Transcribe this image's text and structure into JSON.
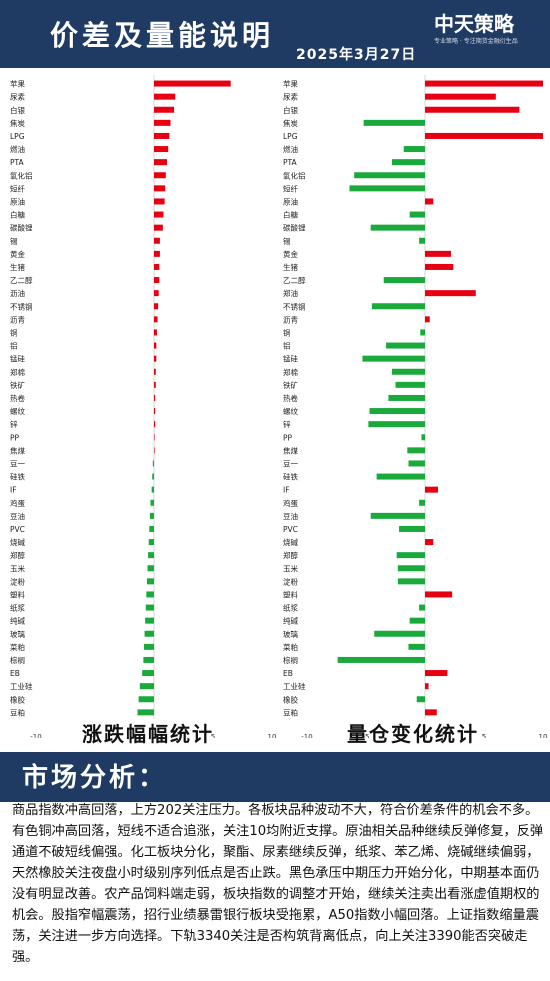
{
  "header": {
    "title": "价差及量能说明",
    "date": "2025年3月27日",
    "logo": "中天策略",
    "logo_sub": "专业策略 · 专注期货金融衍生品"
  },
  "captions": {
    "left": "涨跌幅幅统计",
    "right": "量仓变化统计"
  },
  "section": {
    "title": "市场分析："
  },
  "analysis": "商品指数冲高回落，上方202关注压力。各板块品种波动不大，符合价差条件的机会不多。有色铜冲高回落，短线不适合追涨，关注10均附近支撑。原油相关品种继续反弹修复，反弹通道不破短线偏强。化工板块分化，聚酯、尿素继续反弹，纸浆、苯乙烯、烧碱继续偏弱，天然橡胶关注夜盘小时级别序列低点是否止跌。黑色承压中期压力开始分化，中期基本面仍没有明显改善。农产品饲料端走弱，板块指数的调整才开始，继续关注卖出看涨虚值期权的机会。股指窄幅震荡，招行业绩暴雷银行板块受拖累，A50指数小幅回落。上证指数缩量震荡，关注进一步方向选择。下轨3340关注是否构筑背离低点，向上关注3390能否突破走强。",
  "colors": {
    "up": "#e60012",
    "down": "#1aaa3c",
    "header": "#1f3a63"
  },
  "chart_data": [
    {
      "type": "bar",
      "orientation": "horizontal",
      "title": "涨跌幅幅统计",
      "xlim": [
        -10,
        10
      ],
      "xticks": [
        "-10",
        "-5",
        "0",
        "5",
        "10"
      ],
      "categories": [
        "苹果",
        "尿素",
        "白银",
        "焦炭",
        "LPG",
        "燃油",
        "PTA",
        "氧化铝",
        "短纤",
        "原油",
        "白糖",
        "碳酸锂",
        "锡",
        "黄金",
        "生猪",
        "乙二醇",
        "沥油",
        "不锈钢",
        "沥青",
        "铜",
        "铝",
        "锰硅",
        "郑棉",
        "铁矿",
        "热卷",
        "螺纹",
        "锌",
        "PP",
        "焦煤",
        "豆一",
        "硅铁",
        "IF",
        "鸡蛋",
        "豆油",
        "PVC",
        "烧碱",
        "郑醇",
        "玉米",
        "淀粉",
        "塑料",
        "纸浆",
        "纯碱",
        "玻璃",
        "菜粕",
        "棕榈",
        "EB",
        "工业硅",
        "橡胶",
        "豆粕"
      ],
      "values": [
        6.5,
        1.8,
        1.7,
        1.4,
        1.3,
        1.2,
        1.1,
        1.0,
        0.95,
        0.9,
        0.8,
        0.75,
        0.5,
        0.5,
        0.45,
        0.45,
        0.4,
        0.35,
        0.3,
        0.25,
        0.2,
        0.2,
        0.15,
        0.15,
        0.1,
        0.1,
        0.1,
        0.05,
        0.05,
        -0.1,
        -0.15,
        -0.2,
        -0.3,
        -0.35,
        -0.4,
        -0.45,
        -0.5,
        -0.55,
        -0.6,
        -0.65,
        -0.7,
        -0.75,
        -0.8,
        -0.85,
        -0.9,
        -1.0,
        -1.2,
        -1.3,
        -1.4
      ]
    },
    {
      "type": "bar",
      "orientation": "horizontal",
      "title": "量仓变化统计",
      "xlim": [
        -10,
        10
      ],
      "xticks": [
        "-10",
        "-5",
        "0",
        "5",
        "10"
      ],
      "categories": [
        "苹果",
        "尿素",
        "白银",
        "焦炭",
        "LPG",
        "燃油",
        "PTA",
        "氧化铝",
        "短纤",
        "原油",
        "白糖",
        "碳酸锂",
        "锡",
        "黄金",
        "生猪",
        "乙二醇",
        "郑油",
        "不锈钢",
        "沥青",
        "铜",
        "铝",
        "锰硅",
        "郑棉",
        "铁矿",
        "热卷",
        "螺纹",
        "锌",
        "PP",
        "焦煤",
        "豆一",
        "硅铁",
        "IF",
        "鸡蛋",
        "豆油",
        "PVC",
        "烧碱",
        "郑醇",
        "玉米",
        "淀粉",
        "塑料",
        "纸浆",
        "纯碱",
        "玻璃",
        "菜粕",
        "棕榈",
        "EB",
        "工业硅",
        "橡胶",
        "豆粕"
      ],
      "values": [
        10,
        6,
        8,
        -5.2,
        10,
        -1.8,
        -2.8,
        -6,
        -6.4,
        0.7,
        -1.3,
        -4.6,
        -0.5,
        2.2,
        2.4,
        -3.5,
        4.3,
        -4.5,
        0.4,
        -0.4,
        -3.3,
        -5.3,
        -2.8,
        -2.5,
        -3.1,
        -4.7,
        -4.8,
        -0.3,
        -1.5,
        -1.4,
        -4.1,
        1.1,
        -0.5,
        -4.6,
        -2.2,
        0.7,
        -2.4,
        -2.3,
        -2.3,
        2.3,
        -0.5,
        -1.3,
        -4.3,
        -1.4,
        -7.4,
        1.9,
        0.3,
        -0.7,
        1.0
      ]
    }
  ]
}
